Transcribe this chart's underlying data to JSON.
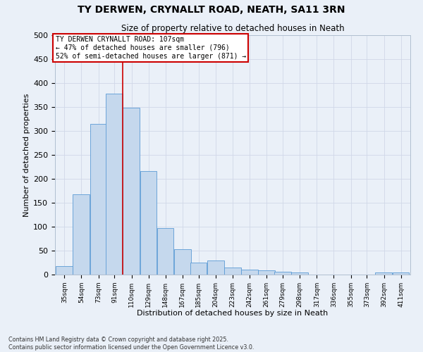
{
  "title1": "TY DERWEN, CRYNALLT ROAD, NEATH, SA11 3RN",
  "title2": "Size of property relative to detached houses in Neath",
  "xlabel": "Distribution of detached houses by size in Neath",
  "ylabel": "Number of detached properties",
  "bin_labels": [
    "35sqm",
    "54sqm",
    "73sqm",
    "91sqm",
    "110sqm",
    "129sqm",
    "148sqm",
    "167sqm",
    "185sqm",
    "204sqm",
    "223sqm",
    "242sqm",
    "261sqm",
    "279sqm",
    "298sqm",
    "317sqm",
    "336sqm",
    "355sqm",
    "373sqm",
    "392sqm",
    "411sqm"
  ],
  "bin_edges": [
    35,
    54,
    73,
    91,
    110,
    129,
    148,
    167,
    185,
    204,
    223,
    242,
    261,
    279,
    298,
    317,
    336,
    355,
    373,
    392,
    411
  ],
  "bar_heights": [
    18,
    168,
    315,
    378,
    348,
    216,
    97,
    53,
    25,
    30,
    14,
    10,
    9,
    6,
    5,
    0,
    0,
    0,
    0,
    5,
    5
  ],
  "bar_color": "#c5d8ed",
  "bar_edge_color": "#5b9bd5",
  "vline_x": 110,
  "vline_color": "#cc0000",
  "annotation_line1": "TY DERWEN CRYNALLT ROAD: 107sqm",
  "annotation_line2": "← 47% of detached houses are smaller (796)",
  "annotation_line3": "52% of semi-detached houses are larger (871) →",
  "annotation_box_color": "#ffffff",
  "annotation_box_edge": "#cc0000",
  "ylim": [
    0,
    500
  ],
  "yticks": [
    0,
    50,
    100,
    150,
    200,
    250,
    300,
    350,
    400,
    450,
    500
  ],
  "grid_color": "#d0d8e8",
  "background_color": "#eaf0f8",
  "footnote_left": "Contains HM Land Registry data © Crown copyright and database right 2025.",
  "footnote_right": "Contains public sector information licensed under the Open Government Licence v3.0."
}
